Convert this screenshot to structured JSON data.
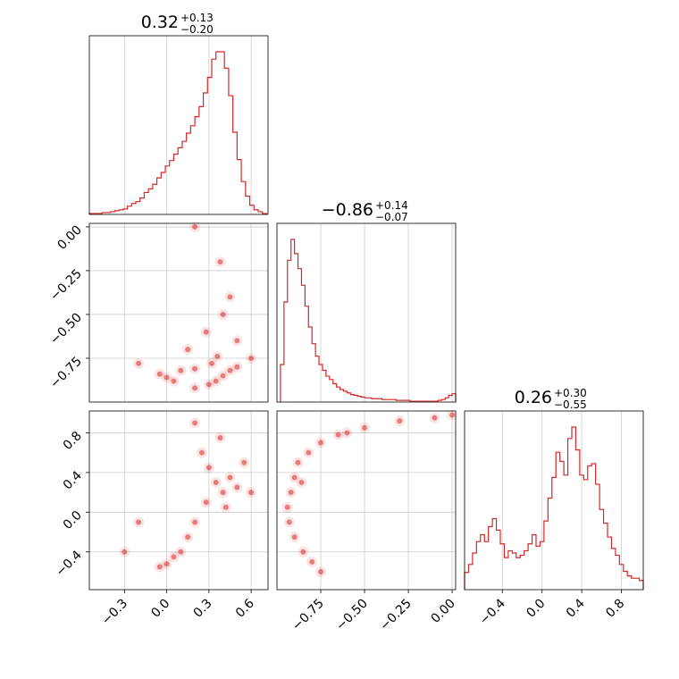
{
  "chart_data": {
    "type": "corner",
    "color": "#d62728",
    "parameters": [
      {
        "title": {
          "value": "0.32",
          "upper": "+0.13",
          "lower": "−0.20"
        },
        "range": [
          -0.55,
          0.72
        ],
        "ticks": [
          -0.3,
          0.0,
          0.3,
          0.6
        ],
        "tick_labels": [
          "−0.3",
          "0.0",
          "0.3",
          "0.6"
        ],
        "histogram": {
          "bins": [
            -0.55,
            -0.52,
            -0.49,
            -0.46,
            -0.43,
            -0.4,
            -0.37,
            -0.34,
            -0.31,
            -0.28,
            -0.25,
            -0.22,
            -0.19,
            -0.16,
            -0.13,
            -0.1,
            -0.07,
            -0.04,
            -0.01,
            0.02,
            0.05,
            0.08,
            0.11,
            0.14,
            0.17,
            0.2,
            0.23,
            0.26,
            0.29,
            0.32,
            0.35,
            0.38,
            0.41,
            0.44,
            0.47,
            0.5,
            0.53,
            0.56,
            0.59,
            0.62,
            0.65,
            0.68,
            0.71
          ],
          "counts": [
            1,
            1,
            1,
            2,
            2,
            3,
            4,
            5,
            6,
            9,
            12,
            14,
            18,
            24,
            28,
            33,
            40,
            46,
            53,
            59,
            66,
            73,
            80,
            89,
            97,
            107,
            118,
            133,
            150,
            170,
            178,
            178,
            160,
            130,
            90,
            60,
            36,
            20,
            10,
            5,
            3,
            1
          ]
        }
      },
      {
        "title": {
          "value": "−0.86",
          "upper": "+0.14",
          "lower": "−0.07"
        },
        "range": [
          -1.0,
          0.02
        ],
        "ticks": [
          -0.75,
          -0.5,
          -0.25,
          0.0
        ],
        "tick_labels": [
          "−0.75",
          "−0.50",
          "−0.25",
          "0.00"
        ],
        "histogram": {
          "bins": [
            -0.98,
            -0.96,
            -0.94,
            -0.92,
            -0.9,
            -0.88,
            -0.86,
            -0.84,
            -0.82,
            -0.8,
            -0.78,
            -0.76,
            -0.74,
            -0.72,
            -0.7,
            -0.68,
            -0.66,
            -0.64,
            -0.62,
            -0.6,
            -0.58,
            -0.56,
            -0.54,
            -0.52,
            -0.5,
            -0.48,
            -0.46,
            -0.44,
            -0.42,
            -0.4,
            -0.38,
            -0.36,
            -0.34,
            -0.32,
            -0.3,
            -0.28,
            -0.26,
            -0.24,
            -0.22,
            -0.2,
            -0.18,
            -0.16,
            -0.14,
            -0.12,
            -0.1,
            -0.08,
            -0.06,
            -0.04,
            -0.02,
            0.0,
            0.02
          ],
          "counts": [
            45,
            120,
            170,
            195,
            178,
            160,
            140,
            115,
            90,
            70,
            55,
            45,
            38,
            31,
            27,
            22,
            18,
            15,
            13,
            11,
            9,
            8,
            7,
            6,
            5,
            5,
            4,
            4,
            4,
            3,
            3,
            3,
            3,
            2,
            2,
            2,
            2,
            1,
            1,
            1,
            1,
            1,
            1,
            1,
            1,
            2,
            3,
            5,
            8,
            10
          ]
        }
      },
      {
        "title": {
          "value": "0.26",
          "upper": "+0.30",
          "lower": "−0.55"
        },
        "range": [
          -0.78,
          1.02
        ],
        "ticks": [
          -0.4,
          0.0,
          0.4,
          0.8
        ],
        "tick_labels": [
          "−0.4",
          "0.0",
          "0.4",
          "0.8"
        ],
        "histogram": {
          "bins": [
            -0.78,
            -0.74,
            -0.7,
            -0.66,
            -0.62,
            -0.58,
            -0.54,
            -0.5,
            -0.46,
            -0.42,
            -0.38,
            -0.34,
            -0.3,
            -0.26,
            -0.22,
            -0.18,
            -0.14,
            -0.1,
            -0.06,
            -0.02,
            0.02,
            0.06,
            0.1,
            0.14,
            0.18,
            0.22,
            0.26,
            0.3,
            0.34,
            0.38,
            0.42,
            0.46,
            0.5,
            0.54,
            0.58,
            0.62,
            0.66,
            0.7,
            0.74,
            0.78,
            0.82,
            0.86,
            0.9,
            0.94,
            0.98,
            1.02
          ],
          "counts": [
            15,
            22,
            32,
            42,
            48,
            42,
            55,
            62,
            52,
            40,
            28,
            34,
            32,
            28,
            30,
            34,
            40,
            48,
            38,
            42,
            60,
            80,
            98,
            120,
            112,
            100,
            132,
            142,
            122,
            100,
            96,
            108,
            110,
            92,
            70,
            58,
            46,
            36,
            30,
            22,
            16,
            12,
            10,
            10,
            8
          ]
        }
      }
    ],
    "scatter_2d": [
      {
        "x_param": 0,
        "y_param": 1,
        "points": [
          [
            0.2,
            -0.92
          ],
          [
            0.3,
            -0.9
          ],
          [
            0.35,
            -0.88
          ],
          [
            0.4,
            -0.85
          ],
          [
            0.45,
            -0.82
          ],
          [
            0.5,
            -0.8
          ],
          [
            0.05,
            -0.88
          ],
          [
            0.0,
            -0.86
          ],
          [
            -0.05,
            -0.84
          ],
          [
            0.1,
            -0.82
          ],
          [
            0.2,
            -0.81
          ],
          [
            0.32,
            -0.78
          ],
          [
            0.36,
            -0.74
          ],
          [
            0.28,
            -0.6
          ],
          [
            0.4,
            -0.5
          ],
          [
            0.5,
            -0.65
          ],
          [
            0.6,
            -0.75
          ],
          [
            0.15,
            -0.7
          ],
          [
            -0.2,
            -0.78
          ],
          [
            0.45,
            -0.4
          ],
          [
            0.38,
            -0.2
          ],
          [
            0.2,
            0.0
          ]
        ]
      },
      {
        "x_param": 0,
        "y_param": 2,
        "points": [
          [
            0.35,
            0.3
          ],
          [
            0.4,
            0.2
          ],
          [
            0.45,
            0.35
          ],
          [
            0.3,
            0.45
          ],
          [
            0.28,
            0.1
          ],
          [
            0.2,
            -0.1
          ],
          [
            0.15,
            -0.25
          ],
          [
            0.05,
            -0.45
          ],
          [
            -0.05,
            -0.55
          ],
          [
            0.0,
            -0.52
          ],
          [
            0.1,
            -0.4
          ],
          [
            0.25,
            0.6
          ],
          [
            0.38,
            0.75
          ],
          [
            0.42,
            0.05
          ],
          [
            0.55,
            0.5
          ],
          [
            0.5,
            0.25
          ],
          [
            0.2,
            0.9
          ],
          [
            -0.3,
            -0.4
          ],
          [
            -0.2,
            -0.1
          ],
          [
            0.6,
            0.2
          ]
        ]
      },
      {
        "x_param": 1,
        "y_param": 2,
        "points": [
          [
            -0.92,
            0.2
          ],
          [
            -0.9,
            0.35
          ],
          [
            -0.88,
            0.5
          ],
          [
            -0.82,
            0.6
          ],
          [
            -0.75,
            0.7
          ],
          [
            -0.65,
            0.78
          ],
          [
            -0.94,
            0.05
          ],
          [
            -0.93,
            -0.1
          ],
          [
            -0.9,
            -0.25
          ],
          [
            -0.85,
            -0.4
          ],
          [
            -0.8,
            -0.5
          ],
          [
            -0.75,
            -0.6
          ],
          [
            -0.5,
            0.85
          ],
          [
            -0.3,
            0.92
          ],
          [
            -0.1,
            0.95
          ],
          [
            0.0,
            0.98
          ],
          [
            -0.6,
            0.8
          ],
          [
            -0.86,
            0.3
          ]
        ]
      }
    ]
  }
}
